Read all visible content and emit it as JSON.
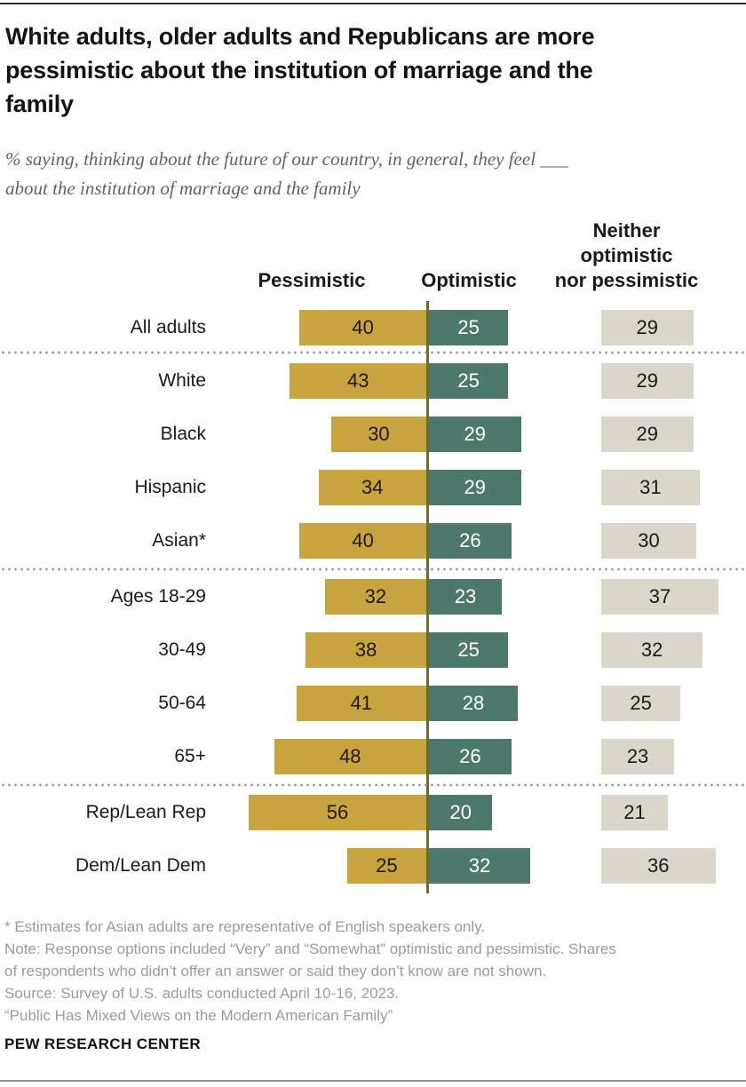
{
  "chart_data": {
    "type": "bar",
    "variant": "horizontal-diverging",
    "title": "White adults, older adults and Republicans are more pessimistic about the institution of marriage and the family",
    "title_lines": [
      "White adults, older adults and Republicans are more",
      "pessimistic about the institution of marriage and the",
      "family"
    ],
    "subtitle": "% saying, thinking about the future of our country, in general, they feel ___ about the institution of marriage and the family",
    "subtitle_lines": [
      "% saying, thinking about the future of our country, in general, they feel ___",
      "about the institution of marriage and the family"
    ],
    "column_headers": [
      "Pessimistic",
      "Optimistic",
      "Neither\noptimistic\nnor pessimistic"
    ],
    "categories": [
      "All adults",
      "White",
      "Black",
      "Hispanic",
      "Asian*",
      "Ages 18-29",
      "30-49",
      "50-64",
      "65+",
      "Rep/Lean Rep",
      "Dem/Lean Dem"
    ],
    "series": [
      {
        "name": "Pessimistic",
        "values": [
          40,
          43,
          30,
          34,
          40,
          32,
          38,
          41,
          48,
          56,
          25
        ]
      },
      {
        "name": "Optimistic",
        "values": [
          25,
          25,
          29,
          29,
          26,
          23,
          25,
          28,
          26,
          20,
          32
        ]
      },
      {
        "name": "Neither optimistic nor pessimistic",
        "values": [
          29,
          29,
          29,
          31,
          30,
          37,
          32,
          25,
          23,
          21,
          36
        ]
      }
    ],
    "groups": [
      [
        0
      ],
      [
        1,
        2,
        3,
        4
      ],
      [
        5,
        6,
        7,
        8
      ],
      [
        9,
        10
      ]
    ],
    "value_range": [
      0,
      60
    ],
    "grid": false,
    "legend_position": "column-headers-top",
    "colors": {
      "pessimistic": "#C9A43E",
      "optimistic": "#4D796D",
      "neither": "#DBD6CA",
      "axis_line": "#6E6C2A",
      "pessimistic_value_text": "#1a1a1a",
      "optimistic_value_text": "#ffffff",
      "neither_value_text": "#1a1a1a"
    }
  },
  "notes": [
    "* Estimates for Asian adults are representative of English speakers only.",
    "Note: Response options included “Very” and “Somewhat” optimistic and pessimistic. Shares",
    "of respondents who didn’t offer an answer or said they don’t know are not shown.",
    "Source: Survey of U.S. adults conducted April 10-16, 2023.",
    "“Public Has Mixed Views on the Modern American Family”"
  ],
  "branding": "PEW RESEARCH CENTER"
}
